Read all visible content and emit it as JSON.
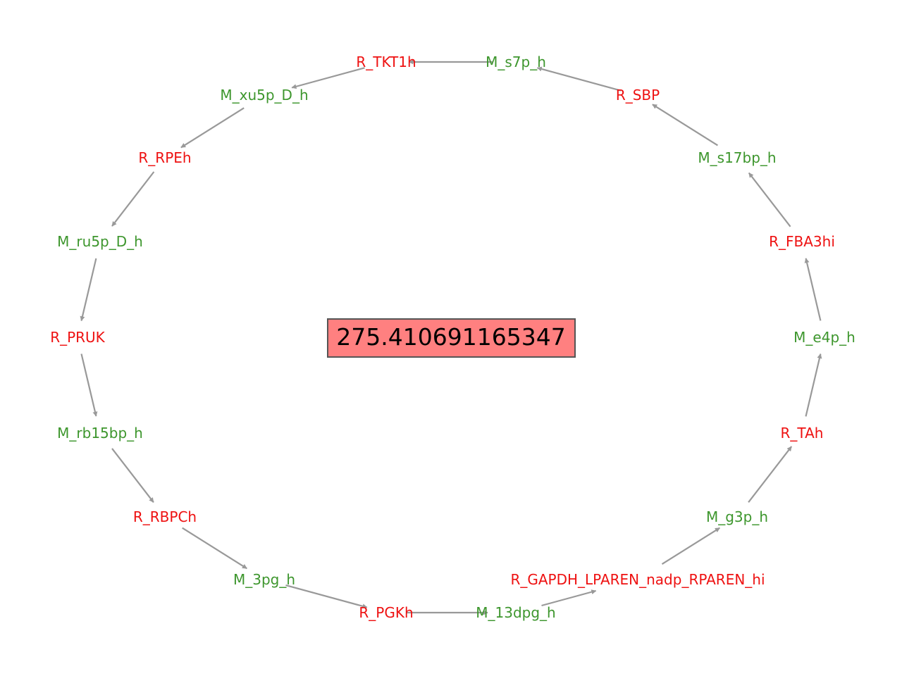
{
  "colors": {
    "reaction": "#ee1111",
    "metabolite": "#3d962d",
    "edge": "#999999",
    "center_fill": "#ff8080"
  },
  "center_value": "275.410691165347",
  "nodes": [
    {
      "id": "n0",
      "label": "R_TKT1h",
      "kind": "reaction"
    },
    {
      "id": "n1",
      "label": "M_xu5p_D_h",
      "kind": "metabolite"
    },
    {
      "id": "n2",
      "label": "R_RPEh",
      "kind": "reaction"
    },
    {
      "id": "n3",
      "label": "M_ru5p_D_h",
      "kind": "metabolite"
    },
    {
      "id": "n4",
      "label": "R_PRUK",
      "kind": "reaction"
    },
    {
      "id": "n5",
      "label": "M_rb15bp_h",
      "kind": "metabolite"
    },
    {
      "id": "n6",
      "label": "R_RBPCh",
      "kind": "reaction"
    },
    {
      "id": "n7",
      "label": "M_3pg_h",
      "kind": "metabolite"
    },
    {
      "id": "n8",
      "label": "R_PGKh",
      "kind": "reaction"
    },
    {
      "id": "n9",
      "label": "M_13dpg_h",
      "kind": "metabolite"
    },
    {
      "id": "n10",
      "label": "R_GAPDH_LPAREN_nadp_RPAREN_hi",
      "kind": "reaction"
    },
    {
      "id": "n11",
      "label": "M_g3p_h",
      "kind": "metabolite"
    },
    {
      "id": "n12",
      "label": "R_TAh",
      "kind": "reaction"
    },
    {
      "id": "n13",
      "label": "M_e4p_h",
      "kind": "metabolite"
    },
    {
      "id": "n14",
      "label": "R_FBA3hi",
      "kind": "reaction"
    },
    {
      "id": "n15",
      "label": "M_s17bp_h",
      "kind": "metabolite"
    },
    {
      "id": "n16",
      "label": "R_SBP",
      "kind": "reaction"
    },
    {
      "id": "n17",
      "label": "M_s7p_h",
      "kind": "metabolite"
    }
  ],
  "edges": [
    {
      "from": "n0",
      "to": "n1"
    },
    {
      "from": "n1",
      "to": "n2"
    },
    {
      "from": "n2",
      "to": "n3"
    },
    {
      "from": "n3",
      "to": "n4"
    },
    {
      "from": "n4",
      "to": "n5"
    },
    {
      "from": "n5",
      "to": "n6"
    },
    {
      "from": "n6",
      "to": "n7"
    },
    {
      "from": "n7",
      "to": "n8"
    },
    {
      "from": "n8",
      "to": "n9"
    },
    {
      "from": "n9",
      "to": "n10"
    },
    {
      "from": "n10",
      "to": "n11"
    },
    {
      "from": "n11",
      "to": "n12"
    },
    {
      "from": "n12",
      "to": "n13"
    },
    {
      "from": "n13",
      "to": "n14"
    },
    {
      "from": "n14",
      "to": "n15"
    },
    {
      "from": "n15",
      "to": "n16"
    },
    {
      "from": "n16",
      "to": "n17"
    },
    {
      "from": "n17",
      "to": "n0"
    }
  ]
}
